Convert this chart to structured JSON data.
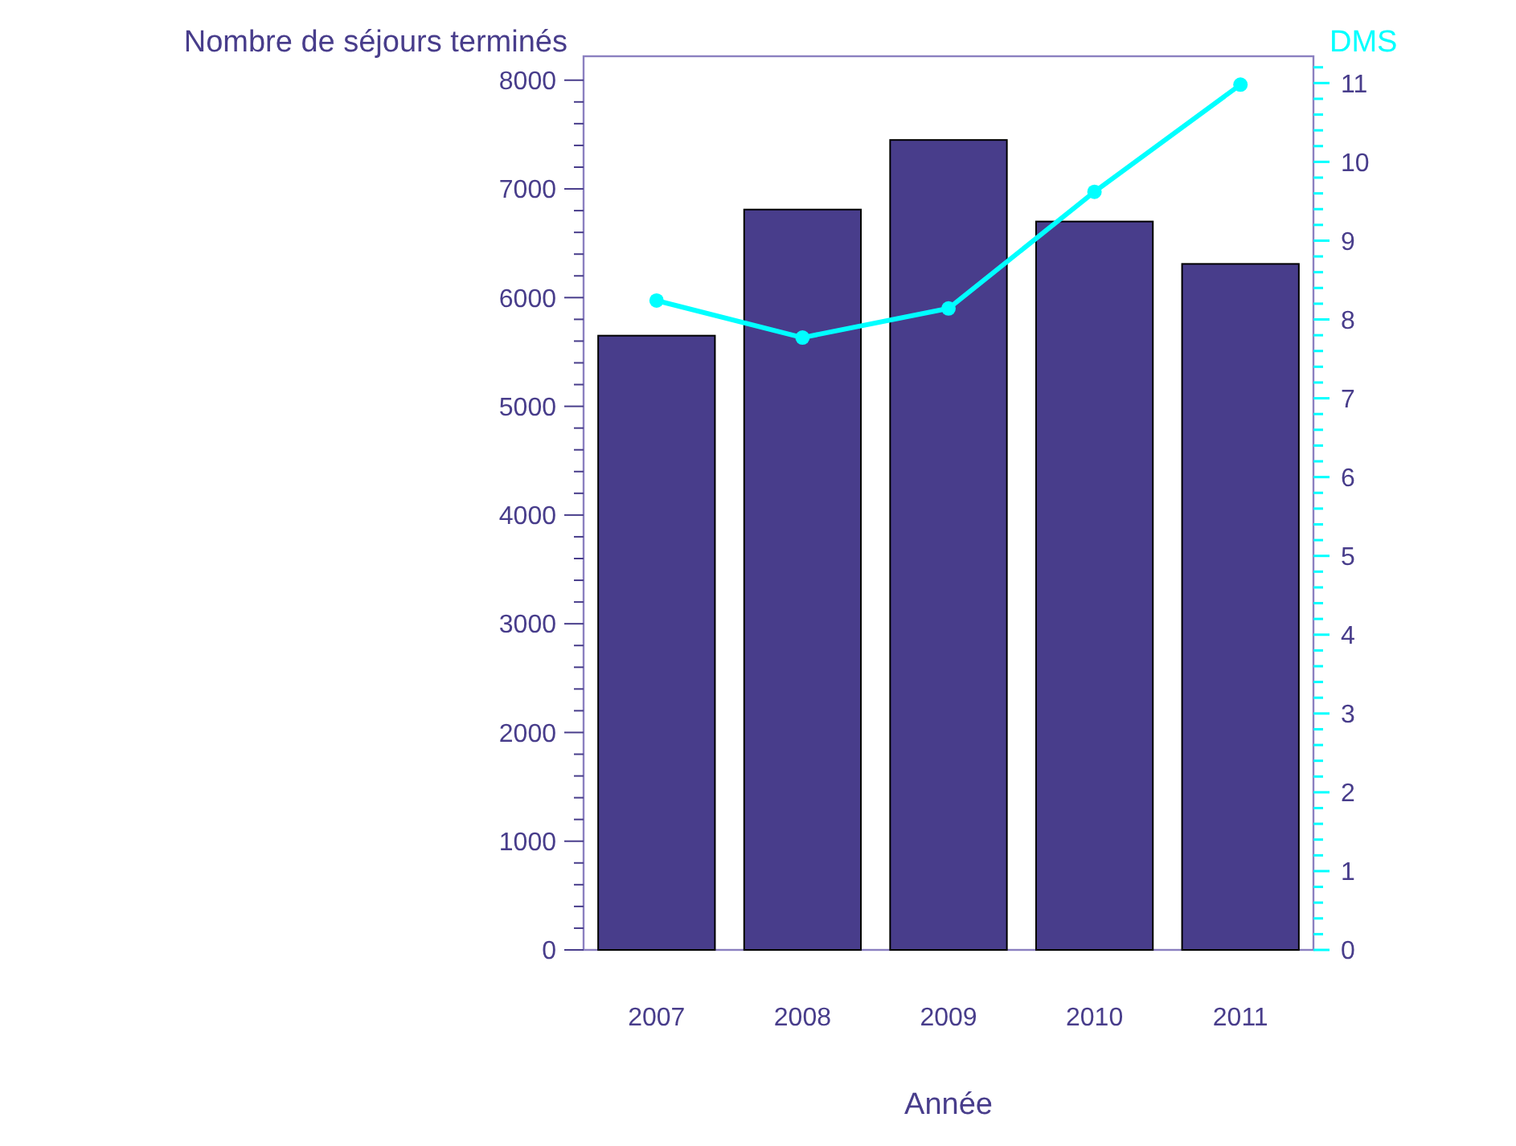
{
  "chart_data": {
    "type": "bar",
    "xlabel": "Année",
    "ylabel": "Nombre de séjours terminés",
    "y2label": "DMS",
    "categories": [
      "2007",
      "2008",
      "2009",
      "2010",
      "2011"
    ],
    "series": [
      {
        "color": "#483d8b",
        "values": [
          5650,
          6810,
          7450,
          6700,
          6310
        ]
      },
      {
        "type": "line",
        "axis": "y2",
        "color": "#00ffff",
        "marker": "circle",
        "values": [
          8.24,
          7.77,
          8.14,
          9.62,
          10.98
        ]
      }
    ],
    "ylim": [
      0,
      8220
    ],
    "yticks": [
      0,
      {
        "value": 200,
        "label": null
      },
      {
        "value": 400,
        "label": null
      },
      {
        "value": 600,
        "label": null
      },
      {
        "value": 800,
        "label": null
      },
      1000,
      {
        "value": 1200,
        "label": null
      },
      {
        "value": 1400,
        "label": null
      },
      {
        "value": 1600,
        "label": null
      },
      {
        "value": 1800,
        "label": null
      },
      2000,
      {
        "value": 2200,
        "label": null
      },
      {
        "value": 2400,
        "label": null
      },
      {
        "value": 2600,
        "label": null
      },
      {
        "value": 2800,
        "label": null
      },
      3000,
      {
        "value": 3200,
        "label": null
      },
      {
        "value": 3400,
        "label": null
      },
      {
        "value": 3600,
        "label": null
      },
      {
        "value": 3800,
        "label": null
      },
      4000,
      {
        "value": 4200,
        "label": null
      },
      {
        "value": 4400,
        "label": null
      },
      {
        "value": 4600,
        "label": null
      },
      {
        "value": 4800,
        "label": null
      },
      5000,
      {
        "value": 5200,
        "label": null
      },
      {
        "value": 5400,
        "label": null
      },
      {
        "value": 5600,
        "label": null
      },
      {
        "value": 5800,
        "label": null
      },
      6000,
      {
        "value": 6200,
        "label": null
      },
      {
        "value": 6400,
        "label": null
      },
      {
        "value": 6600,
        "label": null
      },
      {
        "value": 6800,
        "label": null
      },
      7000,
      {
        "value": 7200,
        "label": null
      },
      {
        "value": 7400,
        "label": null
      },
      {
        "value": 7600,
        "label": null
      },
      {
        "value": 7800,
        "label": null
      },
      8000
    ],
    "y2lim": [
      0,
      11.34
    ],
    "y2ticks": [
      0,
      {
        "value": 0.2,
        "label": null
      },
      {
        "value": 0.4,
        "label": null
      },
      {
        "value": 0.6,
        "label": null
      },
      {
        "value": 0.8,
        "label": null
      },
      1,
      {
        "value": 1.2,
        "label": null
      },
      {
        "value": 1.4,
        "label": null
      },
      {
        "value": 1.6,
        "label": null
      },
      {
        "value": 1.8,
        "label": null
      },
      2,
      {
        "value": 2.2,
        "label": null
      },
      {
        "value": 2.4,
        "label": null
      },
      {
        "value": 2.6,
        "label": null
      },
      {
        "value": 2.8,
        "label": null
      },
      3,
      {
        "value": 3.2,
        "label": null
      },
      {
        "value": 3.4,
        "label": null
      },
      {
        "value": 3.6,
        "label": null
      },
      {
        "value": 3.8,
        "label": null
      },
      4,
      {
        "value": 4.2,
        "label": null
      },
      {
        "value": 4.4,
        "label": null
      },
      {
        "value": 4.6,
        "label": null
      },
      {
        "value": 4.8,
        "label": null
      },
      5,
      {
        "value": 5.2,
        "label": null
      },
      {
        "value": 5.4,
        "label": null
      },
      {
        "value": 5.6,
        "label": null
      },
      {
        "value": 5.8,
        "label": null
      },
      6,
      {
        "value": 6.2,
        "label": null
      },
      {
        "value": 6.4,
        "label": null
      },
      {
        "value": 6.6,
        "label": null
      },
      {
        "value": 6.8,
        "label": null
      },
      7,
      {
        "value": 7.2,
        "label": null
      },
      {
        "value": 7.4,
        "label": null
      },
      {
        "value": 7.6,
        "label": null
      },
      {
        "value": 7.8,
        "label": null
      },
      8,
      {
        "value": 8.2,
        "label": null
      },
      {
        "value": 8.4,
        "label": null
      },
      {
        "value": 8.6,
        "label": null
      },
      {
        "value": 8.8,
        "label": null
      },
      9,
      {
        "value": 9.2,
        "label": null
      },
      {
        "value": 9.4,
        "label": null
      },
      {
        "value": 9.6,
        "label": null
      },
      {
        "value": 9.8,
        "label": null
      },
      10,
      {
        "value": 10.2,
        "label": null
      },
      {
        "value": 10.4,
        "label": null
      },
      {
        "value": 10.6,
        "label": null
      },
      {
        "value": 10.8,
        "label": null
      },
      11,
      {
        "value": 11.2,
        "label": null
      }
    ],
    "grid": false
  }
}
